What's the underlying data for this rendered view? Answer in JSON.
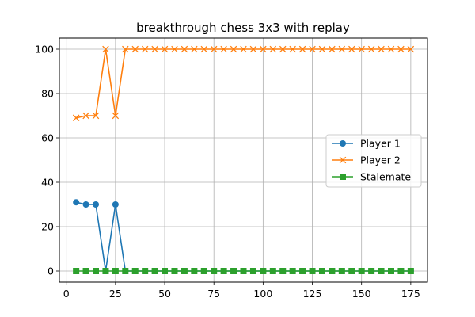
{
  "chart_data": {
    "type": "line",
    "title": "breakthrough chess 3x3 with replay",
    "xlabel": "",
    "ylabel": "",
    "xlim": [
      -3.5,
      183.5
    ],
    "ylim": [
      -5,
      105
    ],
    "xticks": [
      0,
      25,
      50,
      75,
      100,
      125,
      150,
      175
    ],
    "yticks": [
      0,
      20,
      40,
      60,
      80,
      100
    ],
    "grid": true,
    "legend_position": "center-right",
    "x": [
      5,
      10,
      15,
      20,
      25,
      30,
      35,
      40,
      45,
      50,
      55,
      60,
      65,
      70,
      75,
      80,
      85,
      90,
      95,
      100,
      105,
      110,
      115,
      120,
      125,
      130,
      135,
      140,
      145,
      150,
      155,
      160,
      165,
      170,
      175
    ],
    "series": [
      {
        "name": "Player 1",
        "marker": "circle",
        "color": "#1f77b4",
        "values": [
          31,
          30,
          30,
          0,
          30,
          0,
          0,
          0,
          0,
          0,
          0,
          0,
          0,
          0,
          0,
          0,
          0,
          0,
          0,
          0,
          0,
          0,
          0,
          0,
          0,
          0,
          0,
          0,
          0,
          0,
          0,
          0,
          0,
          0,
          0
        ]
      },
      {
        "name": "Player 2",
        "marker": "x",
        "color": "#ff7f0e",
        "values": [
          69,
          70,
          70,
          100,
          70,
          100,
          100,
          100,
          100,
          100,
          100,
          100,
          100,
          100,
          100,
          100,
          100,
          100,
          100,
          100,
          100,
          100,
          100,
          100,
          100,
          100,
          100,
          100,
          100,
          100,
          100,
          100,
          100,
          100,
          100
        ]
      },
      {
        "name": "Stalemate",
        "marker": "square",
        "color": "#2ca02c",
        "values": [
          0,
          0,
          0,
          0,
          0,
          0,
          0,
          0,
          0,
          0,
          0,
          0,
          0,
          0,
          0,
          0,
          0,
          0,
          0,
          0,
          0,
          0,
          0,
          0,
          0,
          0,
          0,
          0,
          0,
          0,
          0,
          0,
          0,
          0,
          0
        ]
      }
    ]
  }
}
